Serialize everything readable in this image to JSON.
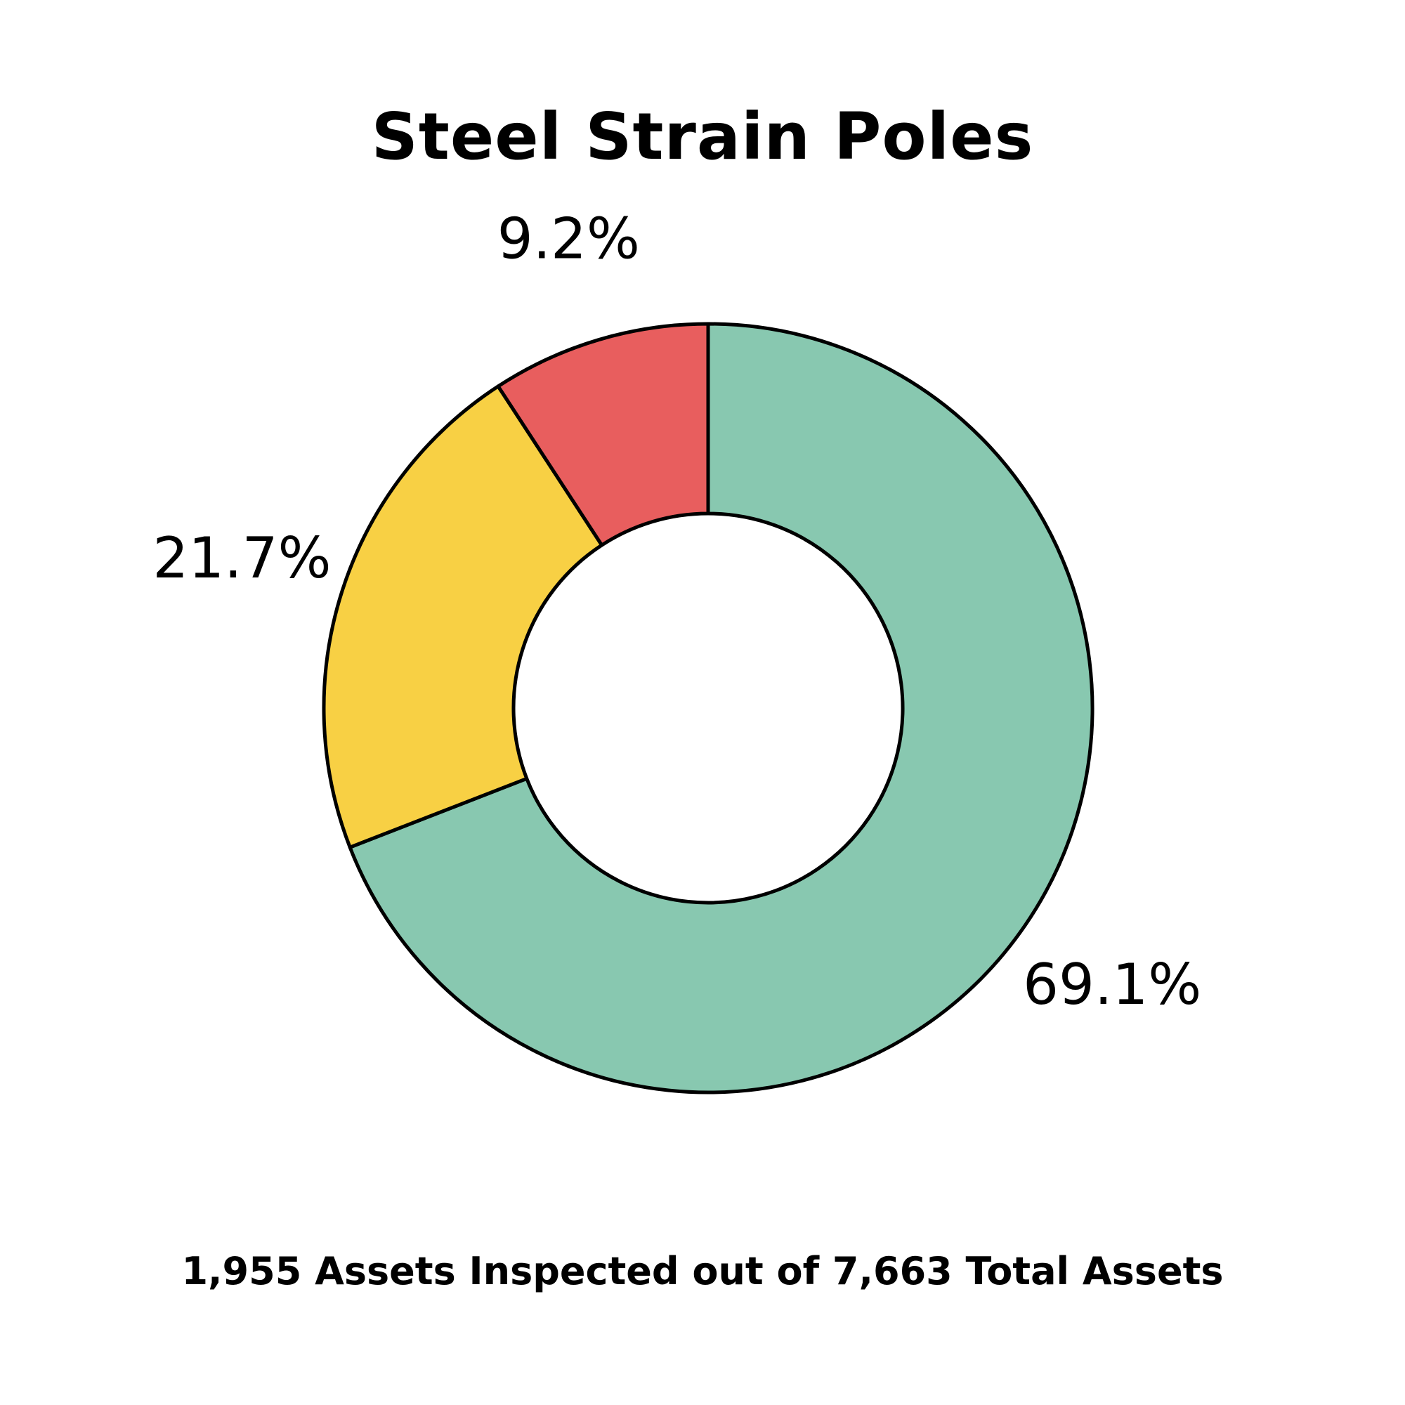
{
  "chart_data": {
    "type": "pie",
    "title": "Steel Strain Poles",
    "subtitle": "1,955 Assets Inspected out of 7,663 Total Assets",
    "categories": [
      "",
      "",
      ""
    ],
    "values": [
      69.1,
      21.7,
      9.2
    ],
    "labels": [
      "69.1%",
      "21.7%",
      "9.2%"
    ],
    "colors": [
      "#88C8B0",
      "#F8D044",
      "#E85E5E"
    ],
    "donut": true,
    "legend": "none"
  }
}
